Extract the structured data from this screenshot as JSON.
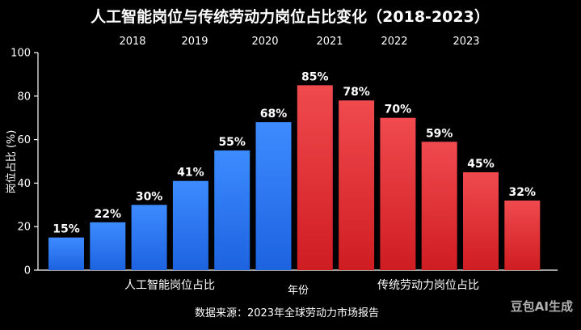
{
  "title": "人工智能岗位与传统劳动力岗位占比变化（2018-2023）",
  "source_note": "数据来源：2023年全球劳动力市场报告",
  "watermark": "豆包AI生成",
  "chart_data": {
    "type": "bar",
    "title": "人工智能岗位与传统劳动力岗位占比变化（2018-2023）",
    "xlabel": "年份",
    "ylabel": "岗位占比 (%)",
    "ylim": [
      0,
      100
    ],
    "yticks": [
      0,
      20,
      40,
      60,
      80,
      100
    ],
    "top_axis_labels": [
      "2018",
      "2019",
      "2020",
      "2021",
      "2022",
      "2023"
    ],
    "grid": false,
    "series": [
      {
        "name": "人工智能岗位占比",
        "color": "#2f7cf6",
        "values": [
          15,
          22,
          30,
          41,
          55,
          68
        ],
        "labels": [
          "15%",
          "22%",
          "30%",
          "41%",
          "55%",
          "68%"
        ]
      },
      {
        "name": "传统劳动力岗位占比",
        "color": "#e3262b",
        "values": [
          85,
          78,
          70,
          59,
          45,
          32
        ],
        "labels": [
          "85%",
          "78%",
          "70%",
          "59%",
          "45%",
          "32%"
        ]
      }
    ]
  }
}
